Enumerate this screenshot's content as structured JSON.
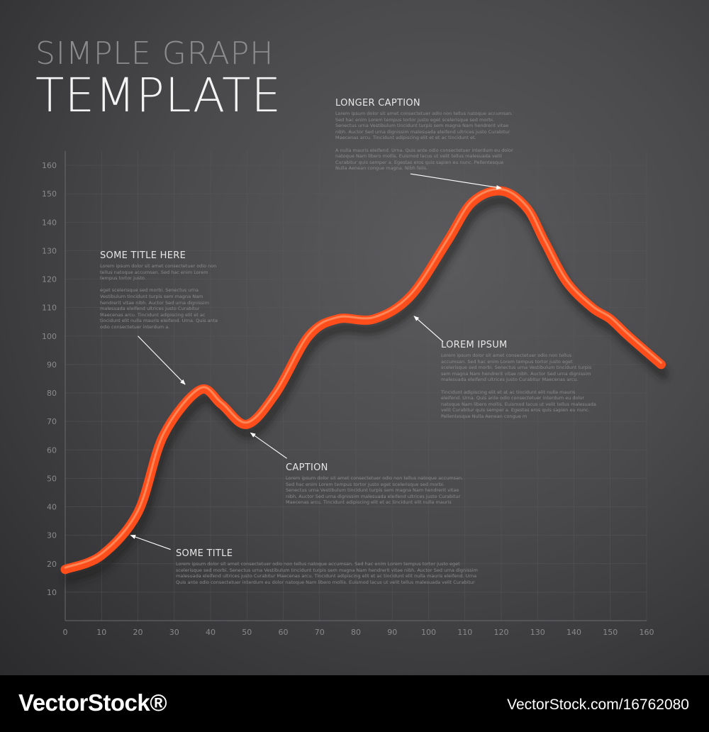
{
  "header": {
    "title_line1": "SIMPLE GRAPH",
    "title_line2": "TEMPLATE"
  },
  "colors": {
    "line": "#ff4e1c",
    "highlight": "#ff9a6a",
    "grid": "#5c5c60",
    "tick_text": "#8a8a8c",
    "annotation_arrow": "#ffffff"
  },
  "chart_data": {
    "type": "line",
    "title": "",
    "xlabel": "",
    "ylabel": "",
    "xlim": [
      0,
      160
    ],
    "ylim": [
      0,
      165
    ],
    "x_ticks": [
      0,
      10,
      20,
      30,
      40,
      50,
      60,
      70,
      80,
      90,
      100,
      110,
      120,
      130,
      140,
      150,
      160
    ],
    "y_ticks": [
      10,
      20,
      30,
      40,
      50,
      60,
      70,
      80,
      90,
      100,
      110,
      120,
      130,
      140,
      150,
      160
    ],
    "grid": true,
    "series": [
      {
        "x": [
          0,
          10,
          20,
          27,
          37,
          43,
          50,
          58,
          67,
          75,
          85,
          95,
          105,
          112,
          120,
          127,
          132,
          138,
          145,
          150,
          155,
          164
        ],
        "y": [
          18,
          23,
          38,
          65,
          81,
          76,
          69,
          80,
          100,
          106,
          106,
          114,
          133,
          147,
          151,
          145,
          133,
          119,
          110,
          106,
          100,
          90
        ]
      }
    ]
  },
  "annotations": [
    {
      "id": "longer-caption",
      "heading": "LONGER CAPTION",
      "body": "Lorem ipsum dolor sit amet consectetuer odio non tellus natoque accumsan.\nSed hac enim Lorem tempus tortor justo eget scelerisque sed morbi.\nSenectus urna Vestibulum tincidunt turpis sem magna Nam hendrerit vitae\nnibh. Auctor Sed urna dignissim malesuada eleifend ultrices justo Curabitur\nMaecenas arcu. Tincidunt adipiscing elit et et ac tincidunt et.\n\nA nulla mauris eleifend. Urna. Quis ante odio consectetuer interdum eu dolor\nnatoque Nam libero mollis. Euismod lacus ut velit tellus malesuada velit\nCurabitur quis semper a. Egestas eros quis sapien eu nunc. Pellentesque\nNulla Aenean congue magna. Nibh felis.",
      "target": [
        120,
        152
      ],
      "tail": [
        95,
        157
      ]
    },
    {
      "id": "some-title-here",
      "heading": "SOME TITLE HERE",
      "body": "Lorem ipsum dolor sit amet consectetuer odio non\ntellus natoque accumsan. Sed hac enim Lorem\ntempus tortor justo.\n\neget scelerisque sed morbi. Senectus urna\nVestibulum tincidunt turpis sem magna Nam\nhendrerit vitae nibh. Auctor Sed urna dignissim\nmalesuada eleifend ultrices justo Curabitur\nMaecenas arcu. Tincidunt adipiscing elit et ac\ntincidunt elit nulla mauris eleifend. Urna. Quis ante\nodio consectetuer interdum a.",
      "target": [
        33,
        83
      ],
      "tail": [
        20,
        100
      ]
    },
    {
      "id": "lorem-ipsum",
      "heading": "LOREM IPSUM",
      "body": "Lorem ipsum dolor sit amet consectetuer odio non tellus\naccumsan. Sed hac enim Lorem tempus tortor justo eget\nscelerisque sed morbi. Senectus urna Vestibulum tincidunt turpis\nsem magna Nam hendrerit vitae nibh. Auctor Sed urna dignissim\nmalesuada eleifend ultrices justo Curabitur Maecenas arcu.\n\nTincidunt adipiscing elit et at ac tincidunt elit nulla mauris\neleifend. Urna. Quis ante odio consectetuer interdum eu dolor\nnatoque Nam libero mollis. Euismod lacus ut velit tellus malesuada\nvelit Curabitur quis semper a. Egestas eros quis sapien eu nunc.\nPellentesque Nulla Aenean congue m",
      "target": [
        96,
        107
      ],
      "tail": [
        104,
        98
      ]
    },
    {
      "id": "caption",
      "heading": "CAPTION",
      "body": "Lorem ipsum dolor sit amet consectetuer odio non tellus natoque accumsan.\nSed hac enim Lorem tempus tortor justo eget scelerisque sed morbi.\nSenectus urna Vestibulum tincidunt turpis sem magna Nam hendrerit vitae\nnibh. Auctor Sed urna dignissim malesuada eleifend ultrices justo Curabitur\nMaecenas arcu. Tincidunt adipiscing elit et ac tincidunt elit nulla mauris",
      "target": [
        51,
        66
      ],
      "tail": [
        61,
        57
      ]
    },
    {
      "id": "some-title",
      "heading": "SOME TITLE",
      "body": "Lorem ipsum dolor sit amet consectetuer odio non tellus natoque accumsan. Sed hac enim Lorem tempus tortor justo eget\nscelerisque sed morbi. Senectus urna Vestibulum tincidunt turpis sem magna Nam hendrerit vitae nibh. Auctor Sed urna dignissim\nmalesuada eleifend ultrices justo Curabitur Maecenas arcu. Tincidunt adipiscing elit et ac tincidunt elit nulla mauris eleifend. Urna\nQuis ante odio consectetuer interdum eu dolor natoque Nam libero mollis. Euismod lacus ut velit tellus malesuada velit Curabitur",
      "target": [
        18,
        30
      ],
      "tail": [
        29,
        25
      ]
    }
  ],
  "footer": {
    "brand": "VectorStock®",
    "url": "VectorStock.com/16762080"
  }
}
